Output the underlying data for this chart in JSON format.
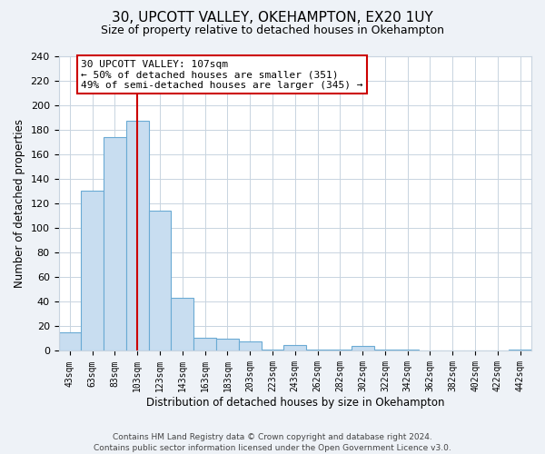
{
  "title": "30, UPCOTT VALLEY, OKEHAMPTON, EX20 1UY",
  "subtitle": "Size of property relative to detached houses in Okehampton",
  "xlabel": "Distribution of detached houses by size in Okehampton",
  "ylabel": "Number of detached properties",
  "bar_labels": [
    "43sqm",
    "63sqm",
    "83sqm",
    "103sqm",
    "123sqm",
    "143sqm",
    "163sqm",
    "183sqm",
    "203sqm",
    "223sqm",
    "243sqm",
    "262sqm",
    "282sqm",
    "302sqm",
    "322sqm",
    "342sqm",
    "362sqm",
    "382sqm",
    "402sqm",
    "422sqm",
    "442sqm"
  ],
  "bar_values": [
    15,
    130,
    174,
    187,
    114,
    43,
    11,
    10,
    8,
    1,
    5,
    1,
    1,
    4,
    1,
    1,
    0,
    0,
    0,
    0,
    1
  ],
  "bar_color": "#c8ddf0",
  "bar_edge_color": "#6aaad4",
  "vline_x": 3,
  "vline_color": "#cc0000",
  "ylim": [
    0,
    240
  ],
  "yticks": [
    0,
    20,
    40,
    60,
    80,
    100,
    120,
    140,
    160,
    180,
    200,
    220,
    240
  ],
  "annotation_title": "30 UPCOTT VALLEY: 107sqm",
  "annotation_line1": "← 50% of detached houses are smaller (351)",
  "annotation_line2": "49% of semi-detached houses are larger (345) →",
  "annotation_box_color": "#ffffff",
  "annotation_box_edge": "#cc0000",
  "footnote1": "Contains HM Land Registry data © Crown copyright and database right 2024.",
  "footnote2": "Contains public sector information licensed under the Open Government Licence v3.0.",
  "bg_color": "#eef2f7",
  "plot_bg_color": "#ffffff",
  "grid_color": "#c8d4e0"
}
